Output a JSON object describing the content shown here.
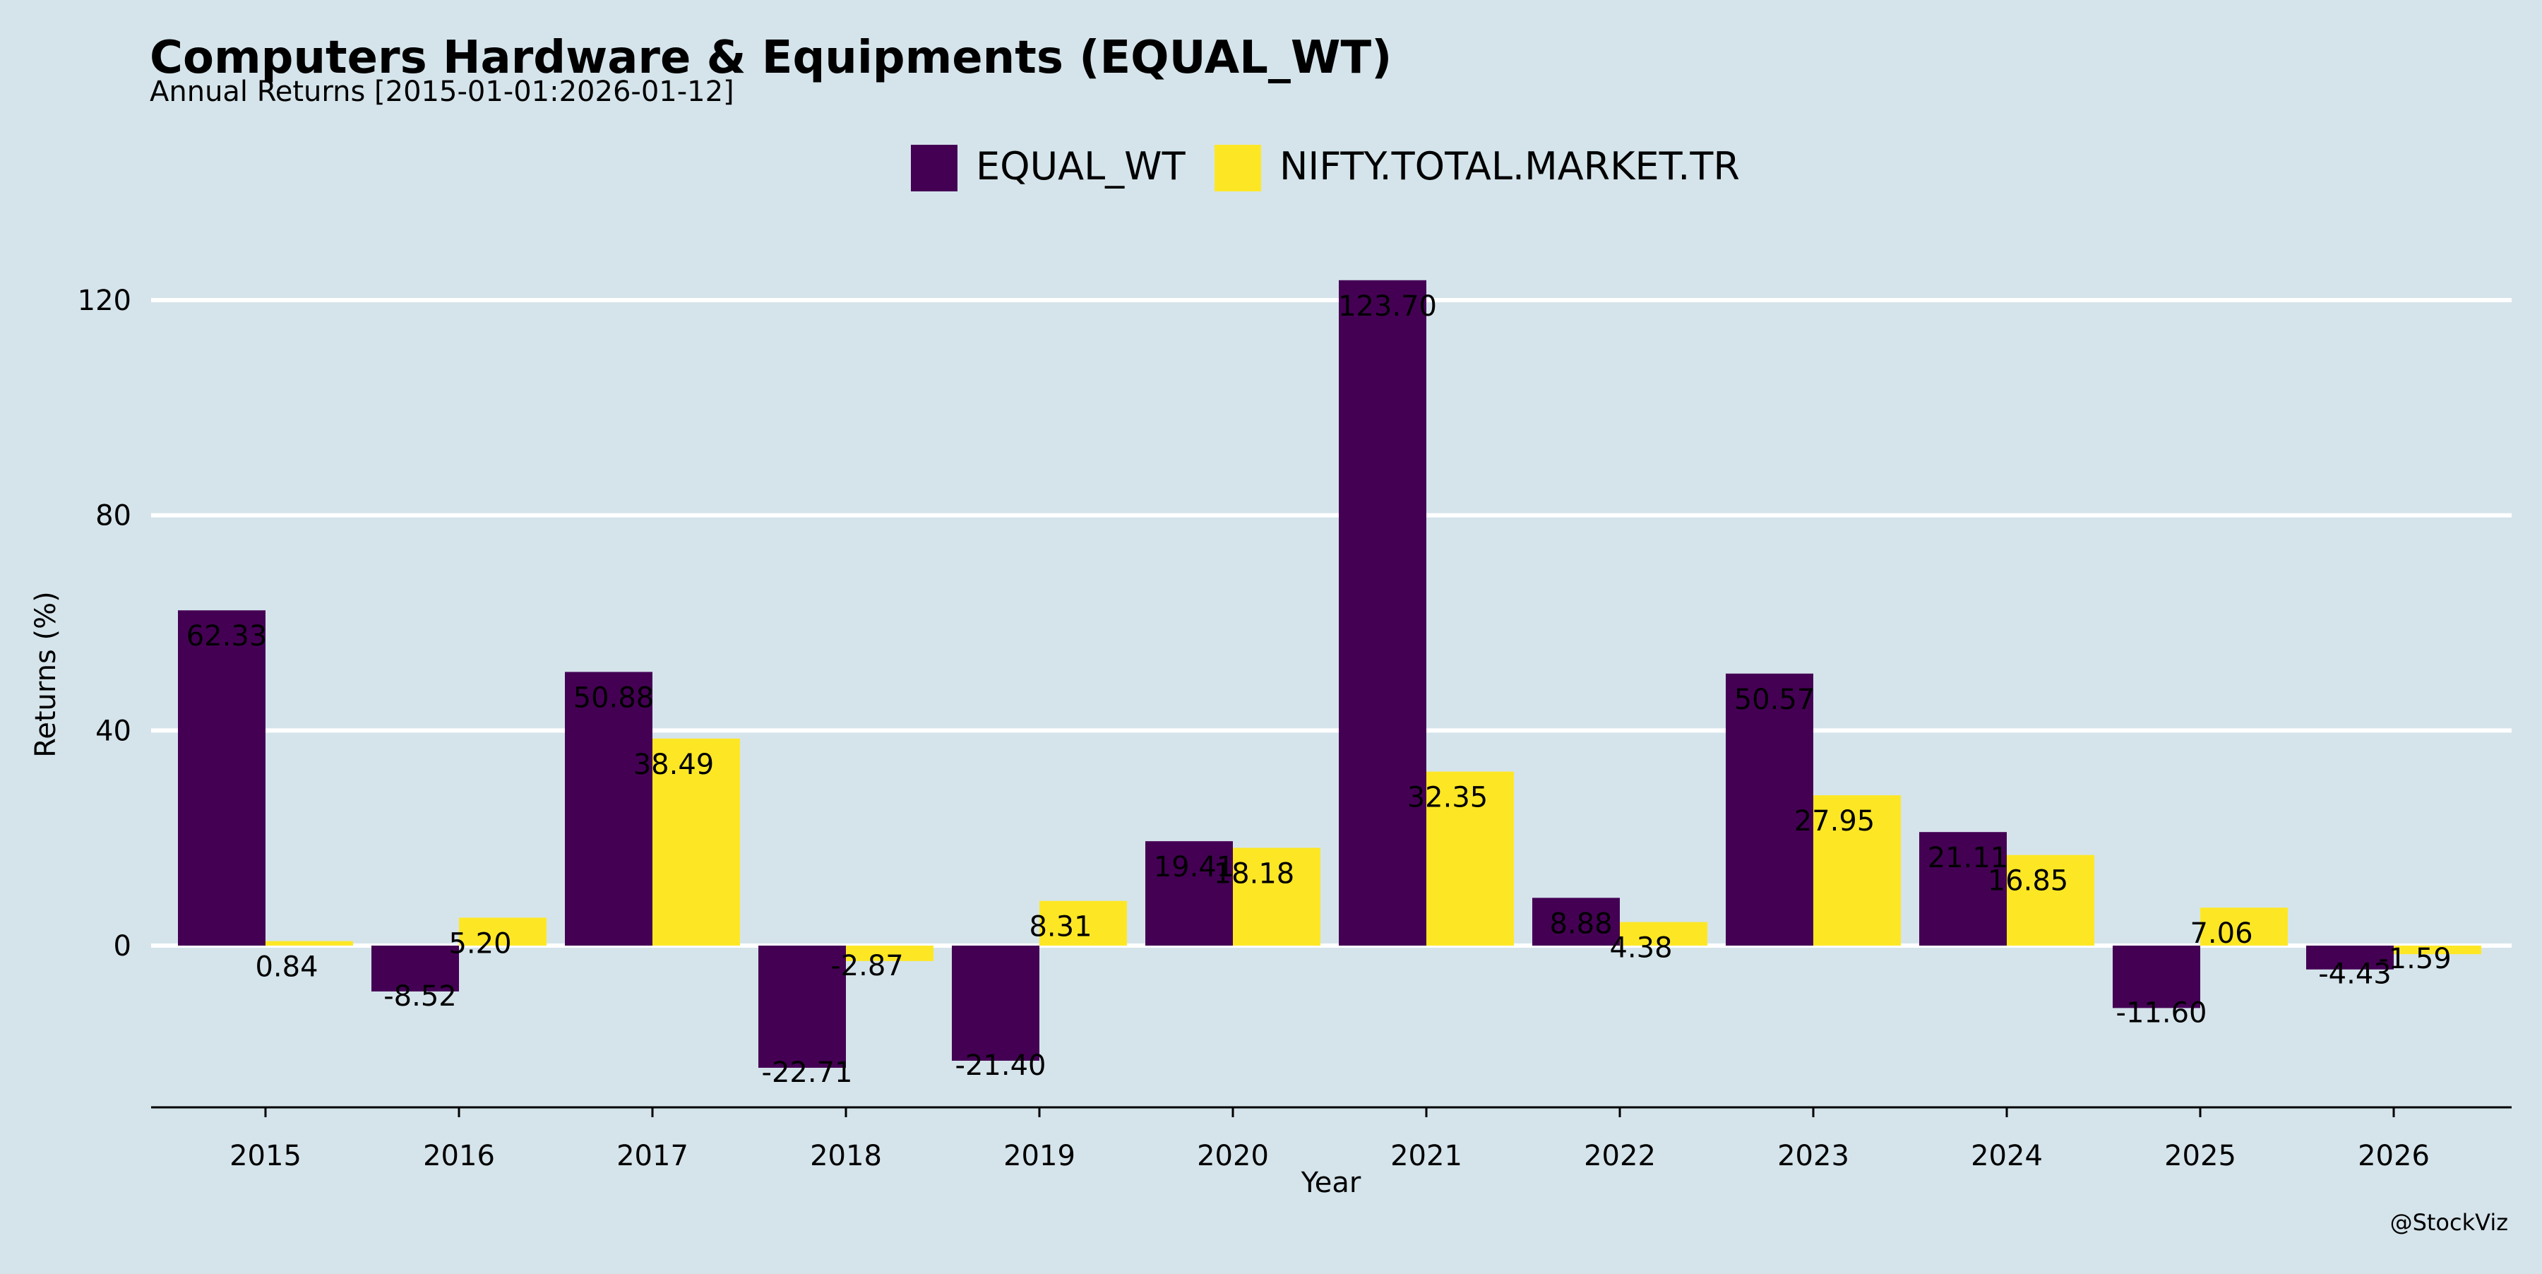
{
  "chart_data": {
    "type": "bar",
    "title": "Computers Hardware & Equipments (EQUAL_WT)",
    "subtitle": "Annual Returns [2015-01-01:2026-01-12]",
    "xlabel": "Year",
    "ylabel": "Returns (%)",
    "ylim": [
      -30,
      135
    ],
    "yticks": [
      0,
      40,
      80,
      120
    ],
    "grid": "horizontal",
    "legend_position": "top",
    "categories": [
      "2015",
      "2016",
      "2017",
      "2018",
      "2019",
      "2020",
      "2021",
      "2022",
      "2023",
      "2024",
      "2025",
      "2026"
    ],
    "series": [
      {
        "name": "EQUAL_WT",
        "color": "#440154",
        "values": [
          62.33,
          -8.52,
          50.88,
          -22.71,
          -21.4,
          19.41,
          123.7,
          8.88,
          50.57,
          21.11,
          -11.6,
          -4.43
        ],
        "labels": [
          "62.33",
          "-8.52",
          "50.88",
          "-22.71",
          "-21.40",
          "19.41",
          "123.70",
          "8.88",
          "50.57",
          "21.11",
          "-11.60",
          "-4.43"
        ]
      },
      {
        "name": "NIFTY.TOTAL.MARKET.TR",
        "color": "#fde725",
        "values": [
          0.84,
          5.2,
          38.49,
          -2.87,
          8.31,
          18.18,
          32.35,
          4.38,
          27.95,
          16.85,
          7.06,
          -1.59
        ],
        "labels": [
          "0.84",
          "5.20",
          "38.49",
          "-2.87",
          "8.31",
          "18.18",
          "32.35",
          "4.38",
          "27.95",
          "16.85",
          "7.06",
          "-1.59"
        ]
      }
    ],
    "watermark": "@StockViz"
  }
}
